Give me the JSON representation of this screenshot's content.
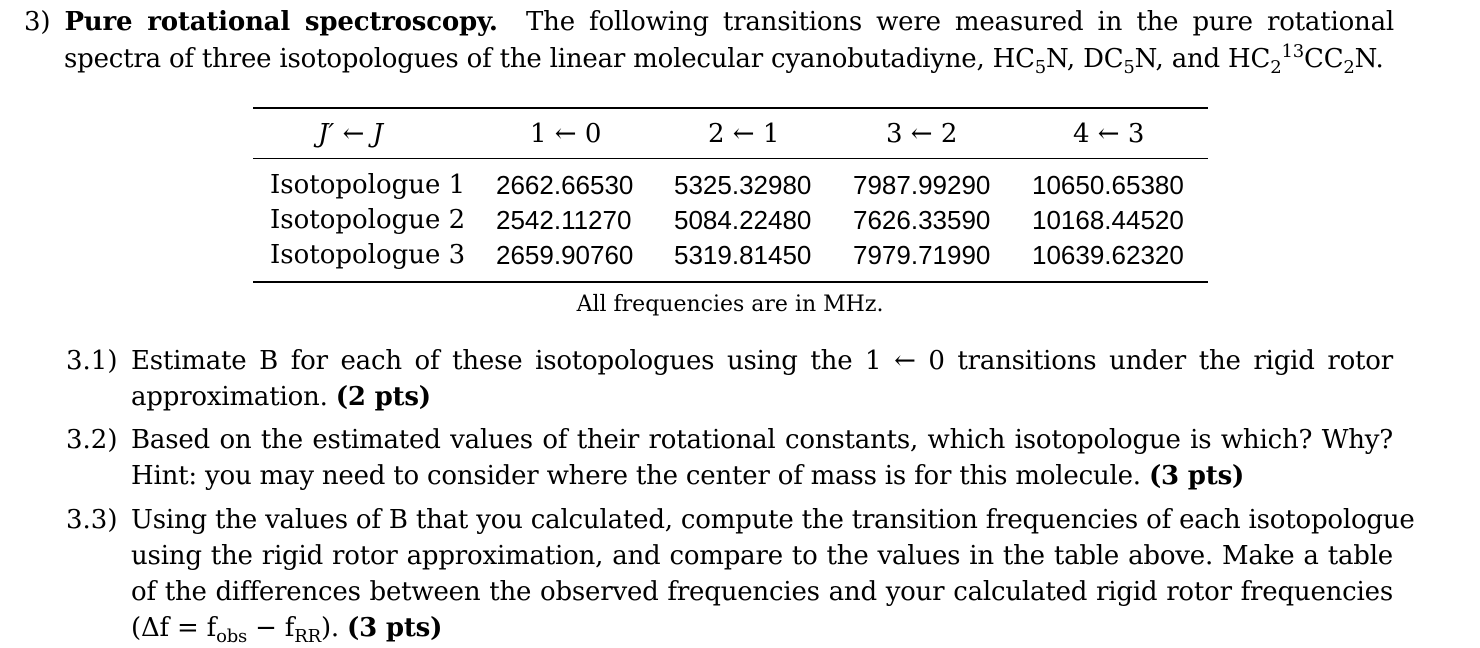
{
  "problem": {
    "number": "3)",
    "title": "Pure rotational spectroscopy.",
    "intro_line1_rest": "The following transitions were measured in the pure rotational",
    "intro_line2_a": "spectra of three isotopologues of the linear molecular cyanobutadiyne, HC",
    "intro_line2_b": "N, DC",
    "intro_line2_c": "N, and HC",
    "intro_line2_d": "CC",
    "intro_line2_e": "N.",
    "sub5": "5",
    "sub2": "2",
    "sup13": "13"
  },
  "table": {
    "headers": [
      "J′ ← J",
      "1 ← 0",
      "2 ← 1",
      "3 ← 2",
      "4 ← 3"
    ],
    "rows": [
      {
        "label": "Isotopologue 1",
        "values": [
          "2662.66530",
          "5325.32980",
          "7987.99290",
          "10650.65380"
        ]
      },
      {
        "label": "Isotopologue 2",
        "values": [
          "2542.11270",
          "5084.22480",
          "7626.33590",
          "10168.44520"
        ]
      },
      {
        "label": "Isotopologue 3",
        "values": [
          "2659.90760",
          "5319.81450",
          "7979.71990",
          "10639.62320"
        ]
      }
    ],
    "caption": "All frequencies are in MHz."
  },
  "questions": [
    {
      "number": "3.1)",
      "lines": [
        "Estimate B for each of these isotopologues using the 1 ← 0 transitions under the rigid rotor",
        "approximation."
      ],
      "pts": "(2 pts)"
    },
    {
      "number": "3.2)",
      "lines": [
        "Based on the estimated values of their rotational constants, which isotopologue is which? Why?",
        "Hint: you may need to consider where the center of mass is for this molecule."
      ],
      "pts": "(3 pts)"
    },
    {
      "number": "3.3)",
      "lines": [
        "Using the values of B that you calculated, compute the transition frequencies of each isotopologue",
        "using the rigid rotor approximation, and compare to the values in the table above. Make a table",
        "of the differences between the observed frequencies and your calculated rigid rotor frequencies",
        "(Δf = f"
      ],
      "formula_obs": "obs",
      "formula_mid": " − f",
      "formula_rr": "RR",
      "formula_end": ").",
      "pts": "(3 pts)"
    }
  ]
}
